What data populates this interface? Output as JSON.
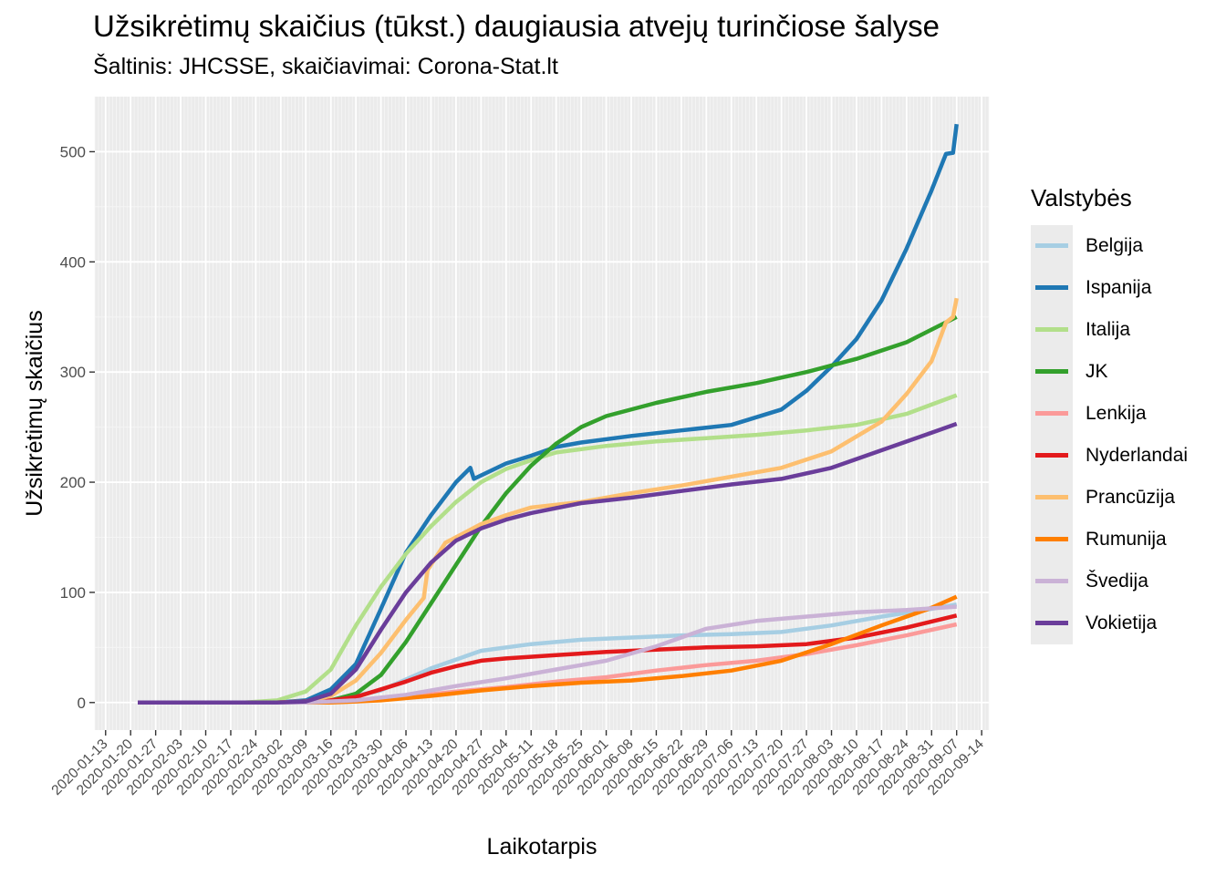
{
  "title": "Užsikrėtimų skaičius (tūkst.) daugiausia atvejų turinčiose šalyse",
  "subtitle": "Šaltinis: JHCSSE, skaičiavimai: Corona-Stat.lt",
  "legend_title": "Valstybės",
  "chart_data": {
    "type": "line",
    "xlabel": "Laikotarpis",
    "ylabel": "Užsikrėtimų skaičius",
    "x_axis": "date",
    "xlim": [
      "2020-01-10",
      "2020-09-16"
    ],
    "ylim": [
      -25,
      550
    ],
    "x_ticks": [
      "2020-01-13",
      "2020-01-20",
      "2020-01-27",
      "2020-02-03",
      "2020-02-10",
      "2020-02-17",
      "2020-02-24",
      "2020-03-02",
      "2020-03-09",
      "2020-03-16",
      "2020-03-23",
      "2020-03-30",
      "2020-04-06",
      "2020-04-13",
      "2020-04-20",
      "2020-04-27",
      "2020-05-04",
      "2020-05-11",
      "2020-05-18",
      "2020-05-25",
      "2020-06-01",
      "2020-06-08",
      "2020-06-15",
      "2020-06-22",
      "2020-06-29",
      "2020-07-06",
      "2020-07-13",
      "2020-07-20",
      "2020-07-27",
      "2020-08-03",
      "2020-08-10",
      "2020-08-17",
      "2020-08-24",
      "2020-08-31",
      "2020-09-07",
      "2020-09-14"
    ],
    "y_ticks": [
      0,
      100,
      200,
      300,
      400,
      500
    ],
    "grid": true,
    "legend_position": "right",
    "series": [
      {
        "name": "Belgija",
        "color": "#a6cee3",
        "points": [
          [
            "2020-01-22",
            0
          ],
          [
            "2020-03-01",
            0
          ],
          [
            "2020-03-15",
            1
          ],
          [
            "2020-03-30",
            11
          ],
          [
            "2020-04-13",
            31
          ],
          [
            "2020-04-27",
            47
          ],
          [
            "2020-05-11",
            53
          ],
          [
            "2020-05-25",
            57
          ],
          [
            "2020-06-08",
            59
          ],
          [
            "2020-06-22",
            61
          ],
          [
            "2020-07-06",
            62
          ],
          [
            "2020-07-20",
            64
          ],
          [
            "2020-08-03",
            70
          ],
          [
            "2020-08-17",
            78
          ],
          [
            "2020-08-31",
            85
          ],
          [
            "2020-09-07",
            89
          ]
        ]
      },
      {
        "name": "Ispanija",
        "color": "#1f78b4",
        "points": [
          [
            "2020-01-22",
            0
          ],
          [
            "2020-03-01",
            0
          ],
          [
            "2020-03-09",
            2
          ],
          [
            "2020-03-16",
            12
          ],
          [
            "2020-03-23",
            35
          ],
          [
            "2020-03-30",
            85
          ],
          [
            "2020-04-06",
            136
          ],
          [
            "2020-04-13",
            170
          ],
          [
            "2020-04-20",
            200
          ],
          [
            "2020-04-24",
            213
          ],
          [
            "2020-04-25",
            203
          ],
          [
            "2020-05-04",
            217
          ],
          [
            "2020-05-11",
            224
          ],
          [
            "2020-05-18",
            232
          ],
          [
            "2020-05-25",
            236
          ],
          [
            "2020-06-08",
            242
          ],
          [
            "2020-06-22",
            247
          ],
          [
            "2020-07-06",
            252
          ],
          [
            "2020-07-20",
            266
          ],
          [
            "2020-07-27",
            283
          ],
          [
            "2020-08-03",
            305
          ],
          [
            "2020-08-10",
            330
          ],
          [
            "2020-08-17",
            365
          ],
          [
            "2020-08-24",
            412
          ],
          [
            "2020-08-31",
            465
          ],
          [
            "2020-09-04",
            498
          ],
          [
            "2020-09-06",
            499
          ],
          [
            "2020-09-07",
            525
          ]
        ]
      },
      {
        "name": "Italija",
        "color": "#b2df8a",
        "points": [
          [
            "2020-01-22",
            0
          ],
          [
            "2020-02-21",
            0
          ],
          [
            "2020-03-01",
            2
          ],
          [
            "2020-03-09",
            10
          ],
          [
            "2020-03-16",
            30
          ],
          [
            "2020-03-23",
            70
          ],
          [
            "2020-03-30",
            105
          ],
          [
            "2020-04-06",
            135
          ],
          [
            "2020-04-13",
            160
          ],
          [
            "2020-04-20",
            182
          ],
          [
            "2020-04-27",
            200
          ],
          [
            "2020-05-04",
            212
          ],
          [
            "2020-05-11",
            220
          ],
          [
            "2020-05-18",
            227
          ],
          [
            "2020-06-01",
            233
          ],
          [
            "2020-06-15",
            237
          ],
          [
            "2020-06-29",
            240
          ],
          [
            "2020-07-13",
            243
          ],
          [
            "2020-07-27",
            247
          ],
          [
            "2020-08-10",
            252
          ],
          [
            "2020-08-24",
            262
          ],
          [
            "2020-09-07",
            279
          ]
        ]
      },
      {
        "name": "JK",
        "color": "#33a02c",
        "points": [
          [
            "2020-01-22",
            0
          ],
          [
            "2020-03-01",
            0
          ],
          [
            "2020-03-16",
            2
          ],
          [
            "2020-03-23",
            8
          ],
          [
            "2020-03-30",
            25
          ],
          [
            "2020-04-06",
            55
          ],
          [
            "2020-04-13",
            90
          ],
          [
            "2020-04-20",
            125
          ],
          [
            "2020-04-27",
            160
          ],
          [
            "2020-05-04",
            190
          ],
          [
            "2020-05-11",
            215
          ],
          [
            "2020-05-18",
            235
          ],
          [
            "2020-05-25",
            250
          ],
          [
            "2020-06-01",
            260
          ],
          [
            "2020-06-15",
            272
          ],
          [
            "2020-06-29",
            282
          ],
          [
            "2020-07-13",
            290
          ],
          [
            "2020-07-27",
            300
          ],
          [
            "2020-08-10",
            312
          ],
          [
            "2020-08-24",
            327
          ],
          [
            "2020-09-07",
            350
          ]
        ]
      },
      {
        "name": "Lenkija",
        "color": "#fb9a99",
        "points": [
          [
            "2020-01-22",
            0
          ],
          [
            "2020-03-09",
            0
          ],
          [
            "2020-03-23",
            1
          ],
          [
            "2020-04-06",
            5
          ],
          [
            "2020-04-20",
            10
          ],
          [
            "2020-05-04",
            14
          ],
          [
            "2020-05-18",
            19
          ],
          [
            "2020-06-01",
            23
          ],
          [
            "2020-06-15",
            29
          ],
          [
            "2020-06-29",
            34
          ],
          [
            "2020-07-13",
            38
          ],
          [
            "2020-07-27",
            44
          ],
          [
            "2020-08-10",
            52
          ],
          [
            "2020-08-24",
            61
          ],
          [
            "2020-09-07",
            71
          ]
        ]
      },
      {
        "name": "Nyderlandai",
        "color": "#e31a1c",
        "points": [
          [
            "2020-01-22",
            0
          ],
          [
            "2020-03-01",
            0
          ],
          [
            "2020-03-16",
            2
          ],
          [
            "2020-03-23",
            5
          ],
          [
            "2020-03-30",
            12
          ],
          [
            "2020-04-06",
            19
          ],
          [
            "2020-04-13",
            27
          ],
          [
            "2020-04-20",
            33
          ],
          [
            "2020-04-27",
            38
          ],
          [
            "2020-05-04",
            40
          ],
          [
            "2020-05-18",
            43
          ],
          [
            "2020-06-01",
            46
          ],
          [
            "2020-06-15",
            48
          ],
          [
            "2020-06-29",
            50
          ],
          [
            "2020-07-13",
            51
          ],
          [
            "2020-07-27",
            53
          ],
          [
            "2020-08-10",
            59
          ],
          [
            "2020-08-24",
            68
          ],
          [
            "2020-09-07",
            79
          ]
        ]
      },
      {
        "name": "Prancūzija",
        "color": "#fdbf6f",
        "points": [
          [
            "2020-01-22",
            0
          ],
          [
            "2020-03-01",
            0
          ],
          [
            "2020-03-09",
            1
          ],
          [
            "2020-03-16",
            6
          ],
          [
            "2020-03-23",
            20
          ],
          [
            "2020-03-30",
            45
          ],
          [
            "2020-04-06",
            75
          ],
          [
            "2020-04-11",
            95
          ],
          [
            "2020-04-12",
            120
          ],
          [
            "2020-04-17",
            145
          ],
          [
            "2020-04-27",
            162
          ],
          [
            "2020-05-04",
            170
          ],
          [
            "2020-05-11",
            177
          ],
          [
            "2020-05-25",
            182
          ],
          [
            "2020-06-08",
            190
          ],
          [
            "2020-06-22",
            197
          ],
          [
            "2020-07-06",
            205
          ],
          [
            "2020-07-20",
            213
          ],
          [
            "2020-08-03",
            228
          ],
          [
            "2020-08-17",
            255
          ],
          [
            "2020-08-24",
            280
          ],
          [
            "2020-08-31",
            310
          ],
          [
            "2020-09-04",
            345
          ],
          [
            "2020-09-06",
            350
          ],
          [
            "2020-09-07",
            367
          ]
        ]
      },
      {
        "name": "Rumunija",
        "color": "#ff7f00",
        "points": [
          [
            "2020-01-22",
            0
          ],
          [
            "2020-03-16",
            0
          ],
          [
            "2020-03-30",
            2
          ],
          [
            "2020-04-13",
            6
          ],
          [
            "2020-04-27",
            11
          ],
          [
            "2020-05-11",
            15
          ],
          [
            "2020-05-25",
            18
          ],
          [
            "2020-06-08",
            20
          ],
          [
            "2020-06-22",
            24
          ],
          [
            "2020-07-06",
            29
          ],
          [
            "2020-07-20",
            38
          ],
          [
            "2020-08-03",
            53
          ],
          [
            "2020-08-17",
            70
          ],
          [
            "2020-08-31",
            86
          ],
          [
            "2020-09-07",
            96
          ]
        ]
      },
      {
        "name": "Švedija",
        "color": "#cab2d6",
        "points": [
          [
            "2020-01-22",
            0
          ],
          [
            "2020-03-09",
            0
          ],
          [
            "2020-03-23",
            2
          ],
          [
            "2020-04-06",
            7
          ],
          [
            "2020-04-20",
            15
          ],
          [
            "2020-05-04",
            22
          ],
          [
            "2020-05-18",
            30
          ],
          [
            "2020-06-01",
            38
          ],
          [
            "2020-06-15",
            51
          ],
          [
            "2020-06-29",
            67
          ],
          [
            "2020-07-13",
            74
          ],
          [
            "2020-07-27",
            78
          ],
          [
            "2020-08-10",
            82
          ],
          [
            "2020-08-24",
            84
          ],
          [
            "2020-09-07",
            87
          ]
        ]
      },
      {
        "name": "Vokietija",
        "color": "#6a3d9a",
        "points": [
          [
            "2020-01-22",
            0
          ],
          [
            "2020-03-01",
            0
          ],
          [
            "2020-03-09",
            1
          ],
          [
            "2020-03-16",
            8
          ],
          [
            "2020-03-23",
            30
          ],
          [
            "2020-03-30",
            66
          ],
          [
            "2020-04-06",
            100
          ],
          [
            "2020-04-13",
            127
          ],
          [
            "2020-04-20",
            147
          ],
          [
            "2020-04-27",
            158
          ],
          [
            "2020-05-04",
            166
          ],
          [
            "2020-05-11",
            172
          ],
          [
            "2020-05-25",
            181
          ],
          [
            "2020-06-08",
            186
          ],
          [
            "2020-06-22",
            192
          ],
          [
            "2020-07-06",
            198
          ],
          [
            "2020-07-20",
            203
          ],
          [
            "2020-08-03",
            213
          ],
          [
            "2020-08-17",
            229
          ],
          [
            "2020-08-31",
            245
          ],
          [
            "2020-09-07",
            253
          ]
        ]
      }
    ]
  }
}
